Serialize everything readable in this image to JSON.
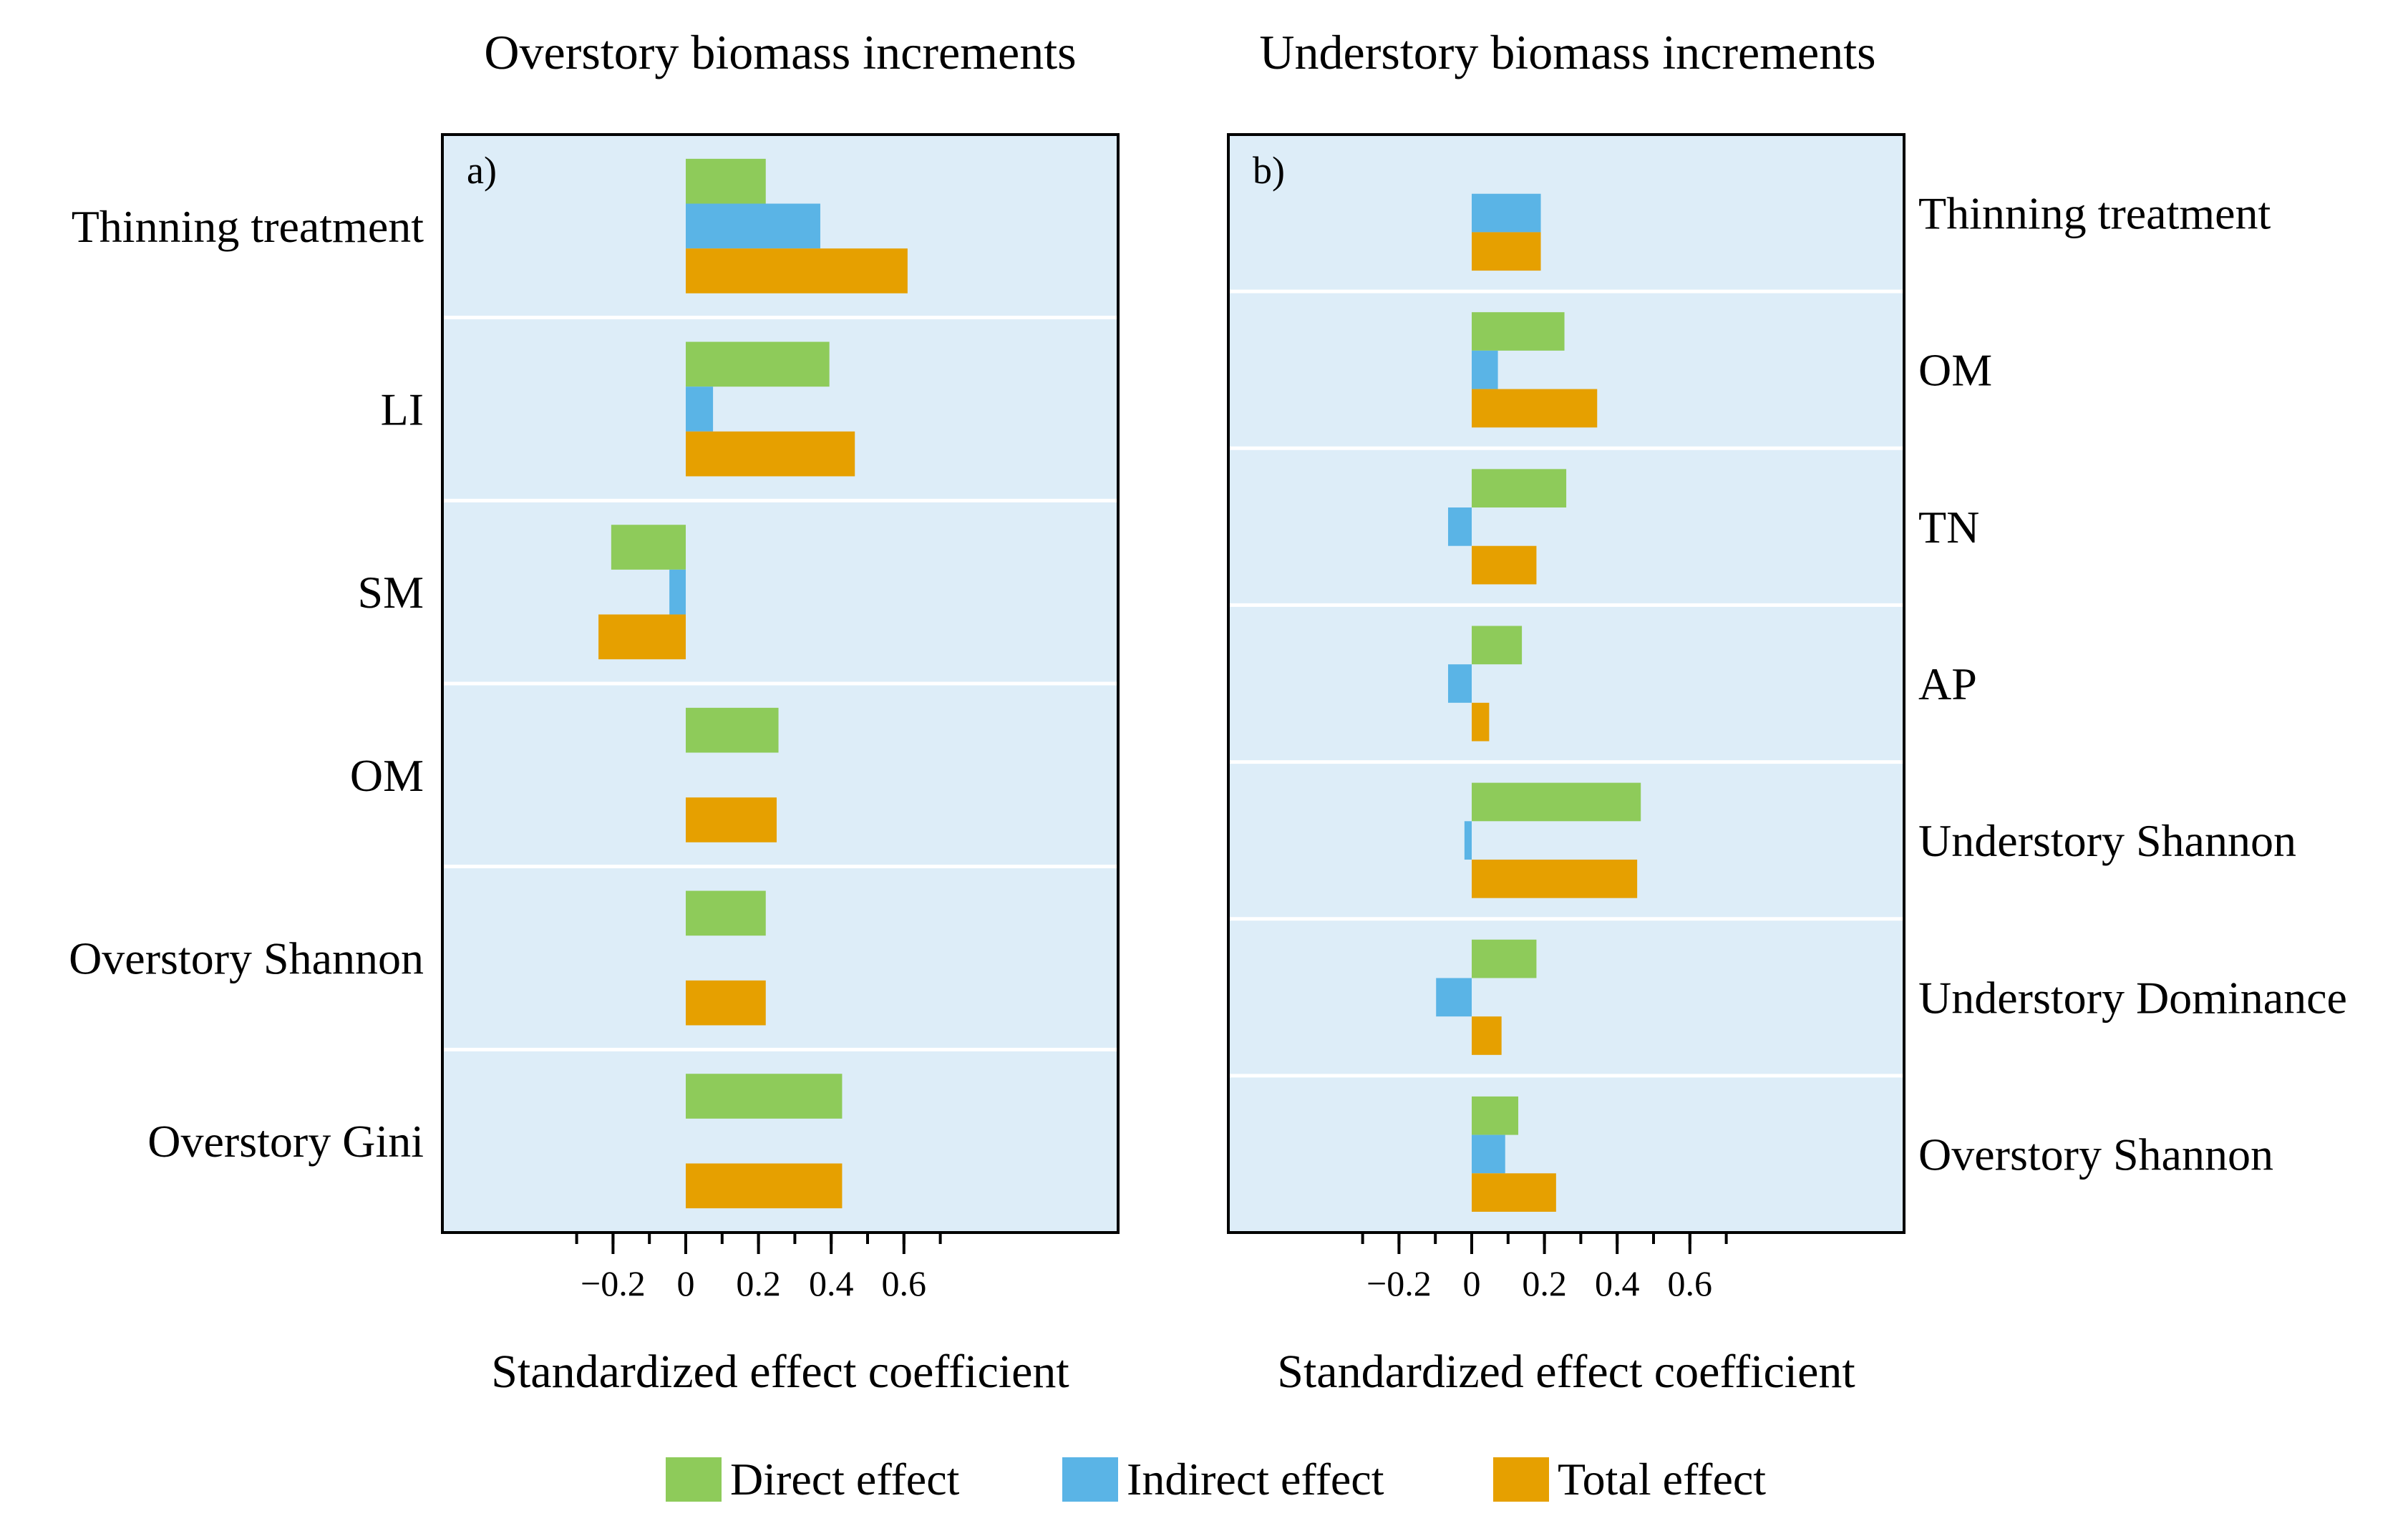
{
  "colors": {
    "direct": "#8ecb5a",
    "indirect": "#5ab4e6",
    "total": "#e6a000",
    "panel_bg": "#ddedf8",
    "separator": "#ffffff",
    "axis": "#000000"
  },
  "legend": {
    "items": [
      {
        "key": "direct",
        "label": "Direct effect"
      },
      {
        "key": "indirect",
        "label": "Indirect effect"
      },
      {
        "key": "total",
        "label": "Total effect"
      }
    ]
  },
  "chart_data": [
    {
      "type": "bar",
      "orientation": "horizontal",
      "panel_label": "a)",
      "title": "Overstory biomass increments",
      "xlabel": "Standardized effect coefficient",
      "xlim": [
        -0.38,
        0.72
      ],
      "xticks": [
        -0.2,
        0,
        0.2,
        0.4,
        0.6
      ],
      "xtick_labels": [
        "−0.2",
        "0",
        "0.2",
        "0.4",
        "0.6"
      ],
      "category_label_side": "left",
      "categories": [
        "Thinning treatment",
        "LI",
        "SM",
        "OM",
        "Overstory Shannon",
        "Overstory Gini"
      ],
      "series": [
        {
          "name": "Direct effect",
          "key": "direct",
          "values": [
            0.22,
            0.395,
            -0.205,
            0.255,
            0.22,
            0.43
          ]
        },
        {
          "name": "Indirect effect",
          "key": "indirect",
          "values": [
            0.37,
            0.075,
            -0.045,
            null,
            null,
            null
          ]
        },
        {
          "name": "Total effect",
          "key": "total",
          "values": [
            0.61,
            0.465,
            -0.24,
            0.25,
            0.22,
            0.43
          ]
        }
      ]
    },
    {
      "type": "bar",
      "orientation": "horizontal",
      "panel_label": "b)",
      "title": "Understory biomass increments",
      "xlabel": "Standardized effect coefficient",
      "xlim": [
        -0.4,
        0.72
      ],
      "xticks": [
        -0.2,
        0,
        0.2,
        0.4,
        0.6
      ],
      "xtick_labels": [
        "−0.2",
        "0",
        "0.2",
        "0.4",
        "0.6"
      ],
      "category_label_side": "right",
      "categories": [
        "Thinning treatment",
        "OM",
        "TN",
        "AP",
        "Understory Shannon",
        "Understory Dominance",
        "Overstory Shannon"
      ],
      "series": [
        {
          "name": "Direct effect",
          "key": "direct",
          "values": [
            null,
            0.255,
            0.26,
            0.138,
            0.465,
            0.178,
            0.128
          ]
        },
        {
          "name": "Indirect effect",
          "key": "indirect",
          "values": [
            0.19,
            0.072,
            -0.065,
            -0.065,
            -0.02,
            -0.098,
            0.092
          ]
        },
        {
          "name": "Total effect",
          "key": "total",
          "values": [
            0.19,
            0.345,
            0.178,
            0.048,
            0.455,
            0.082,
            0.232
          ]
        }
      ]
    }
  ]
}
